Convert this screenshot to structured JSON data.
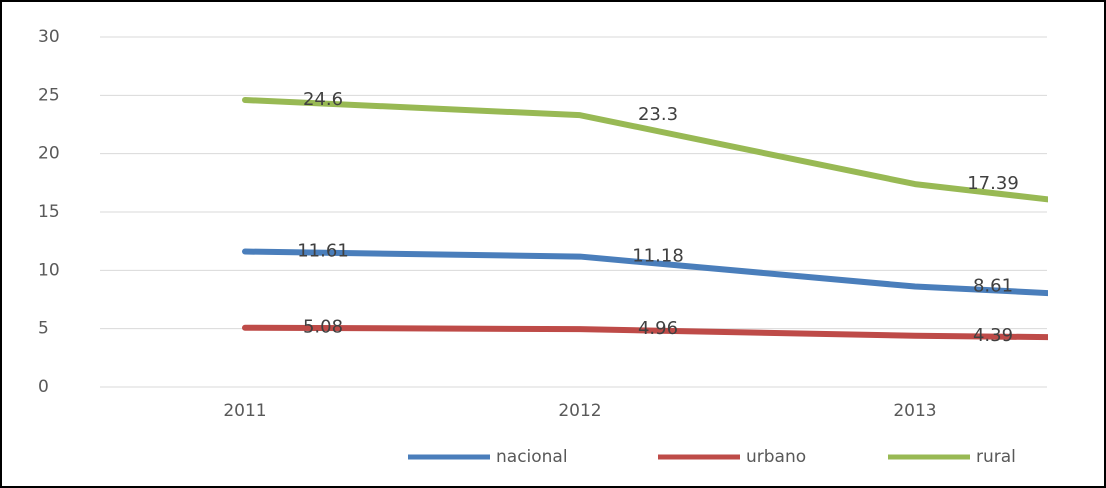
{
  "chart_data": {
    "type": "line",
    "categories": [
      "2011",
      "2012",
      "2013",
      null
    ],
    "series": [
      {
        "name": "nacional",
        "color": "#4a7ebb",
        "values": [
          11.61,
          11.18,
          8.61,
          7.2
        ],
        "value_labels": [
          "11.61",
          "11.18",
          "8.61",
          null
        ]
      },
      {
        "name": "urbano",
        "color": "#be4b48",
        "values": [
          5.08,
          4.96,
          4.39,
          4.1
        ],
        "value_labels": [
          "5.08",
          "4.96",
          "4.39",
          null
        ]
      },
      {
        "name": "rural",
        "color": "#98b954",
        "values": [
          24.6,
          23.3,
          17.39,
          14.1
        ],
        "value_labels": [
          "24.6",
          "23.3",
          "17.39",
          null
        ]
      }
    ],
    "ylim": [
      0,
      30
    ],
    "yticks": [
      0,
      5,
      10,
      15,
      20,
      25,
      30
    ],
    "grid": true,
    "legend": "bottom"
  }
}
